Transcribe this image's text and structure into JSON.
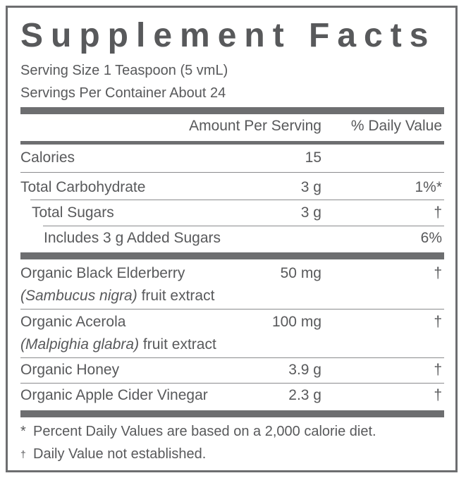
{
  "title": "Supplement Facts",
  "serving_size": "Serving Size 1 Teaspoon (5 vmL)",
  "servings_per_container": "Servings Per Container About 24",
  "header": {
    "amount": "Amount  Per Serving",
    "daily_value": "% Daily Value"
  },
  "rows": [
    {
      "name": "Calories",
      "amount": "15",
      "dv": ""
    },
    {
      "name": "Total Carbohydrate",
      "amount": "3 g",
      "dv": "1%*"
    },
    {
      "name": "Total Sugars",
      "amount": "3 g",
      "dv": "†"
    },
    {
      "name": "Includes 3 g Added Sugars",
      "amount": "",
      "dv": "6%"
    },
    {
      "name": "Organic Black Elderberry",
      "latin": "(Sambucus nigra)",
      "extract": " fruit extract",
      "amount": "50 mg",
      "dv": "†"
    },
    {
      "name": "Organic Acerola",
      "latin": "(Malpighia glabra)",
      "extract": " fruit extract",
      "amount": "100 mg",
      "dv": "†"
    },
    {
      "name": "Organic Honey",
      "amount": "3.9 g",
      "dv": "†"
    },
    {
      "name": "Organic Apple Cider Vinegar",
      "amount": "2.3 g",
      "dv": "†"
    }
  ],
  "footnotes": [
    {
      "symbol": "*",
      "text": "Percent Daily Values are based on a 2,000 calorie diet."
    },
    {
      "symbol": "†",
      "text": "Daily Value not established."
    }
  ],
  "colors": {
    "text": "#58595b",
    "rules": "#6d6e70"
  }
}
